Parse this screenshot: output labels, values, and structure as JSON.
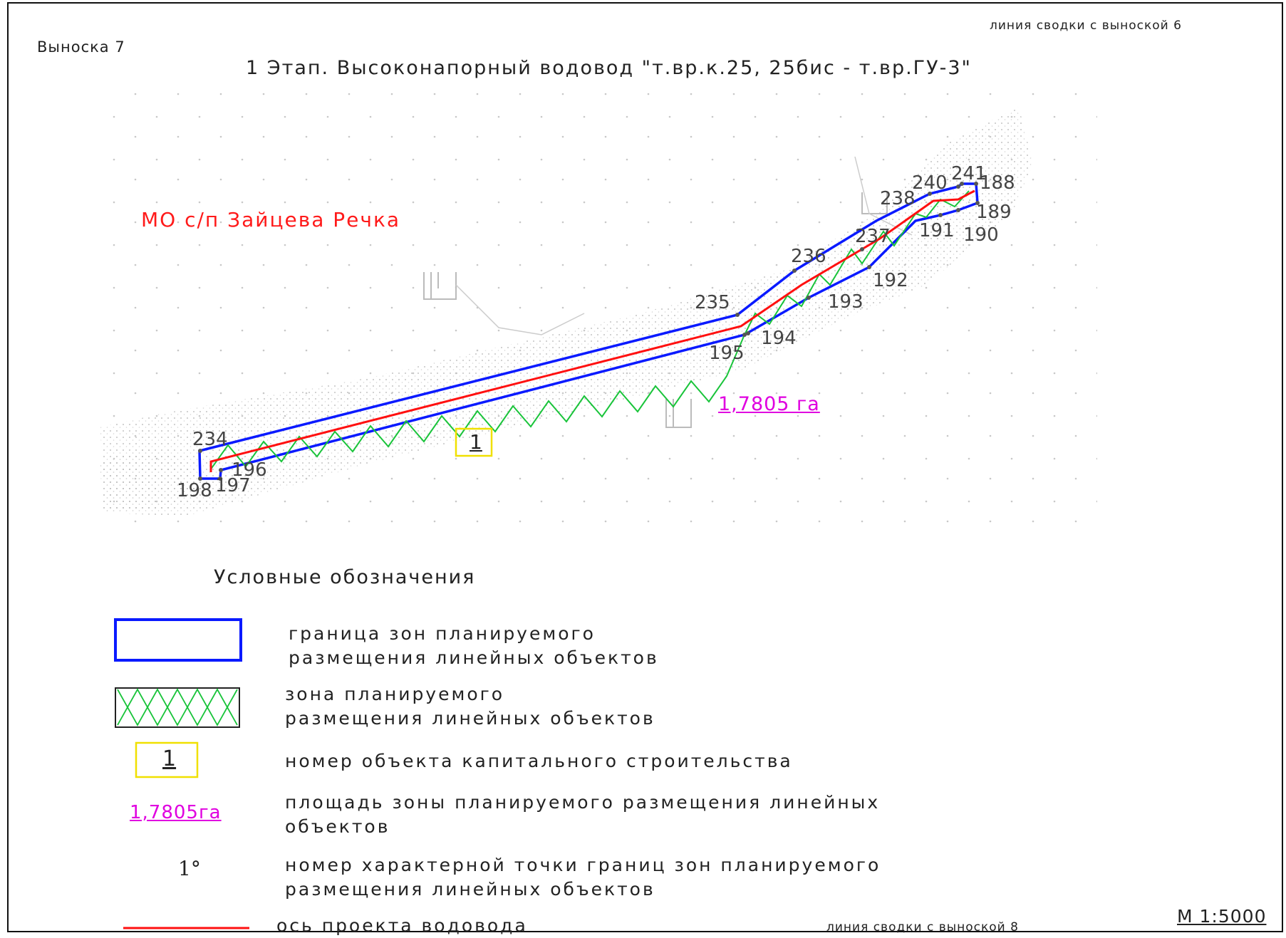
{
  "sheet": {
    "callout_label": "Выноска 7",
    "match_line_top": "линия сводки с выноской 6",
    "match_line_bottom": "линия сводки с выноской 8",
    "title": "1 Этап. Высоконапорный водовод \"т.вр.к.25, 25бис - т.вр.ГУ-3\"",
    "municipality": "МО с/п Зайцева Речка",
    "area_label": "1,7805 га",
    "object_number": "1",
    "scale": "М 1:5000"
  },
  "colors": {
    "boundary": "#0a1aff",
    "hatch": "#19c43a",
    "axis": "#ff1010",
    "area": "#e000e0",
    "object_box": "#f0e000",
    "points": "#555555"
  },
  "points": [
    {
      "label": "234"
    },
    {
      "label": "196"
    },
    {
      "label": "198"
    },
    {
      "label": "197"
    },
    {
      "label": "235"
    },
    {
      "label": "195"
    },
    {
      "label": "194"
    },
    {
      "label": "193"
    },
    {
      "label": "192"
    },
    {
      "label": "236"
    },
    {
      "label": "237"
    },
    {
      "label": "238"
    },
    {
      "label": "240"
    },
    {
      "label": "241"
    },
    {
      "label": "188"
    },
    {
      "label": "189"
    },
    {
      "label": "190"
    },
    {
      "label": "191"
    }
  ],
  "legend": {
    "title": "Условные обозначения",
    "items": [
      {
        "symbol": "blue-rectangle",
        "line1": "граница зон планируемого",
        "line2": "размещения линейных объектов"
      },
      {
        "symbol": "green-hatched-rectangle",
        "line1": "зона планируемого",
        "line2": "размещения линейных объектов"
      },
      {
        "symbol": "yellow-numbered-box",
        "sample": "1",
        "line1": "номер объекта капитального строительства"
      },
      {
        "symbol": "magenta-area-label",
        "sample": "1,7805га",
        "line1": "площадь зоны планируемого размещения линейных",
        "line2": "объектов"
      },
      {
        "symbol": "point-number",
        "sample": "1°",
        "line1": "номер характерной точки границ зон планируемого",
        "line2": "размещения линейных объектов"
      },
      {
        "symbol": "red-line",
        "line1": "ось проекта водовода"
      }
    ]
  }
}
